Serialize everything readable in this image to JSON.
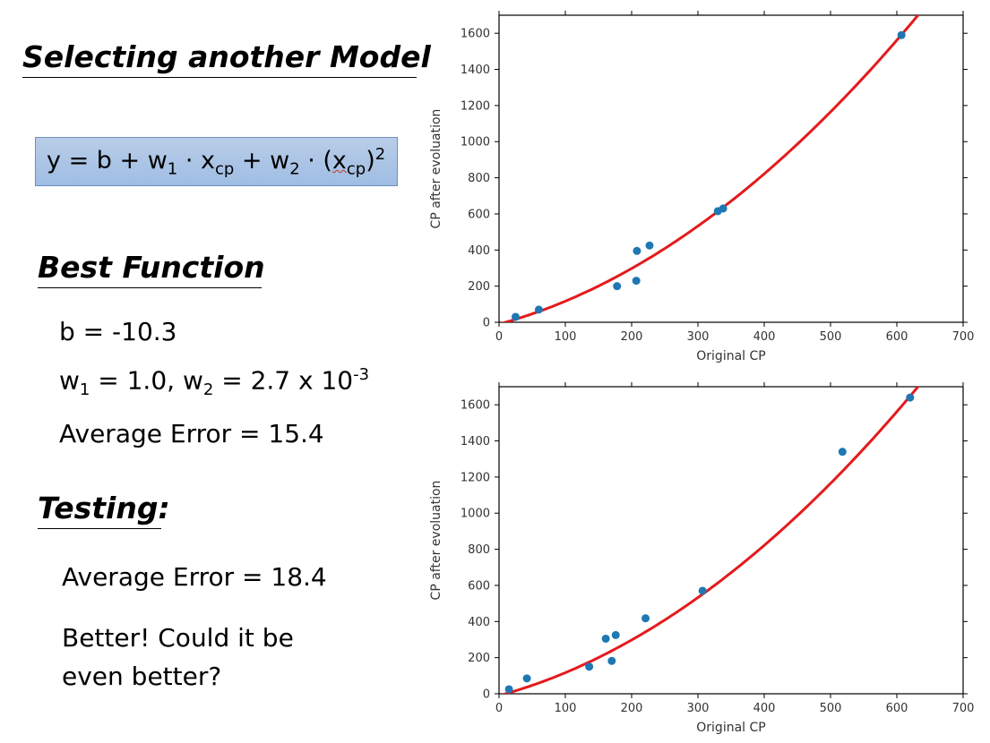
{
  "title": "Selecting another Model",
  "formula": {
    "y": "y",
    "eq": " = b + w",
    "w1_sub": "1",
    "dot1": " · x",
    "x_sub1": "cp",
    "plus": " + w",
    "w2_sub": "2",
    "dot2": " · (",
    "x2": "x",
    "x_sub2": "cp",
    "close": ")",
    "exp": "2"
  },
  "best_function": {
    "heading": "Best Function",
    "b_line": "b = -10.3",
    "w_line": {
      "w1_pre": "w",
      "w1_sub": "1",
      "w1_val": " = 1.0, w",
      "w2_sub": "2",
      "w2_val": " = 2.7 x 10",
      "exp": "-3"
    },
    "average_error": "Average Error = 15.4"
  },
  "testing": {
    "heading": "Testing:",
    "average_error": "Average Error = 18.4",
    "comment_line1": "Better! Could it be",
    "comment_line2": "even better?"
  },
  "colors": {
    "curve": "#e41a1c",
    "points": "#1f77b4",
    "formula_bg": "#a9c4e6"
  },
  "chart_data": [
    {
      "type": "scatter",
      "title": "",
      "xlabel": "Original CP",
      "ylabel": "CP after evoluation",
      "xlim": [
        0,
        700
      ],
      "ylim": [
        0,
        1700
      ],
      "xticks": [
        0,
        100,
        200,
        300,
        400,
        500,
        600,
        700
      ],
      "yticks": [
        0,
        200,
        400,
        600,
        800,
        1000,
        1200,
        1400,
        1600
      ],
      "grid": false,
      "points": [
        [
          25,
          30
        ],
        [
          60,
          70
        ],
        [
          178,
          200
        ],
        [
          207,
          230
        ],
        [
          208,
          395
        ],
        [
          227,
          425
        ],
        [
          330,
          615
        ],
        [
          338,
          630
        ],
        [
          607,
          1590
        ]
      ],
      "curve": {
        "b": -10.3,
        "w1": 1.0,
        "w2": 0.0027
      }
    },
    {
      "type": "scatter",
      "title": "",
      "xlabel": "Original CP",
      "ylabel": "CP after evoluation",
      "xlim": [
        0,
        700
      ],
      "ylim": [
        0,
        1700
      ],
      "xticks": [
        0,
        100,
        200,
        300,
        400,
        500,
        600,
        700
      ],
      "yticks": [
        0,
        200,
        400,
        600,
        800,
        1000,
        1200,
        1400,
        1600
      ],
      "grid": false,
      "points": [
        [
          15,
          25
        ],
        [
          42,
          85
        ],
        [
          136,
          150
        ],
        [
          161,
          305
        ],
        [
          170,
          182
        ],
        [
          176,
          325
        ],
        [
          221,
          418
        ],
        [
          307,
          570
        ],
        [
          518,
          1340
        ],
        [
          620,
          1640
        ]
      ],
      "curve": {
        "b": -10.3,
        "w1": 1.0,
        "w2": 0.0027
      }
    }
  ]
}
